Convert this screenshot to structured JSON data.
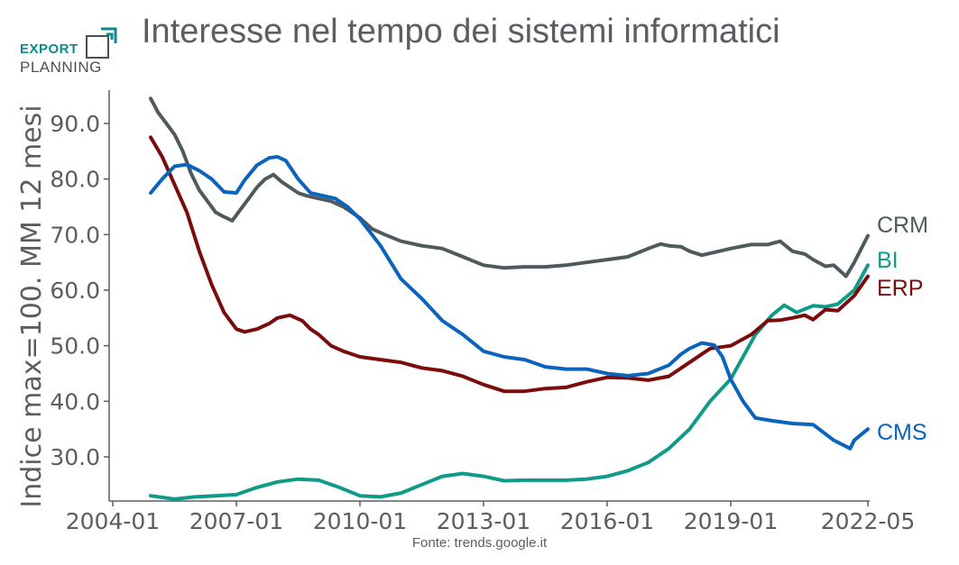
{
  "logo": {
    "line1": "EXPORT",
    "line2": "PLANNING"
  },
  "header": {
    "title": "Interesse nel tempo dei sistemi informatici"
  },
  "footer": {
    "source": "Fonte: trends.google.it"
  },
  "colors": {
    "CRM": "#4f5a5c",
    "BI": "#109a8a",
    "ERP": "#7a0c0c",
    "CMS": "#0a63bd",
    "axis": "#5a5e63"
  },
  "chart_data": {
    "type": "line",
    "title": "Interesse nel tempo dei sistemi informatici",
    "ylabel": "Indice max=100. MM 12 mesi",
    "xlabel": "",
    "xlim": [
      2004.92,
      2022.33
    ],
    "ylim": [
      22,
      96
    ],
    "x_ticks": [
      {
        "label": "2004-01",
        "value": 2004.0
      },
      {
        "label": "2007-01",
        "value": 2007.0
      },
      {
        "label": "2010-01",
        "value": 2010.0
      },
      {
        "label": "2013-01",
        "value": 2013.0
      },
      {
        "label": "2016-01",
        "value": 2016.0
      },
      {
        "label": "2019-01",
        "value": 2019.0
      },
      {
        "label": "2022-05",
        "value": 2022.33
      }
    ],
    "y_ticks": [
      {
        "label": "30.0",
        "value": 30
      },
      {
        "label": "40.0",
        "value": 40
      },
      {
        "label": "50.0",
        "value": 50
      },
      {
        "label": "60.0",
        "value": 60
      },
      {
        "label": "70.0",
        "value": 70
      },
      {
        "label": "80.0",
        "value": 80
      },
      {
        "label": "90.0",
        "value": 90
      }
    ],
    "grid": false,
    "series": [
      {
        "name": "CRM",
        "x": [
          2004.92,
          2005.1,
          2005.3,
          2005.5,
          2005.7,
          2005.9,
          2006.1,
          2006.3,
          2006.5,
          2006.7,
          2006.9,
          2007.1,
          2007.3,
          2007.5,
          2007.7,
          2007.9,
          2008.1,
          2008.3,
          2008.5,
          2008.7,
          2009.0,
          2009.3,
          2009.6,
          2010.0,
          2010.3,
          2010.6,
          2011.0,
          2011.5,
          2012.0,
          2012.5,
          2013.0,
          2013.5,
          2014.0,
          2014.5,
          2015.0,
          2015.5,
          2016.0,
          2016.5,
          2017.0,
          2017.3,
          2017.5,
          2017.8,
          2018.0,
          2018.3,
          2018.6,
          2019.0,
          2019.5,
          2019.9,
          2020.2,
          2020.5,
          2020.8,
          2021.0,
          2021.3,
          2021.5,
          2021.8,
          2022.0,
          2022.33
        ],
        "y": [
          94.5,
          92,
          90,
          88,
          85,
          81,
          78,
          76,
          74,
          73.2,
          72.5,
          74.5,
          76.5,
          78.5,
          80,
          80.8,
          79.5,
          78.5,
          77.5,
          77,
          76.5,
          76,
          75,
          73,
          71,
          70,
          68.8,
          68,
          67.5,
          66,
          64.5,
          64,
          64.2,
          64.2,
          64.5,
          65,
          65.5,
          66,
          67.5,
          68.3,
          68,
          67.8,
          67,
          66.3,
          66.8,
          67.5,
          68.2,
          68.2,
          68.8,
          67,
          66.5,
          65.5,
          64.3,
          64.5,
          62.5,
          65,
          69.8
        ]
      },
      {
        "name": "BI",
        "x": [
          2004.92,
          2005.5,
          2006.0,
          2006.5,
          2007.0,
          2007.5,
          2008.0,
          2008.5,
          2009.0,
          2009.5,
          2010.0,
          2010.5,
          2011.0,
          2011.5,
          2012.0,
          2012.5,
          2013.0,
          2013.5,
          2014.0,
          2014.5,
          2015.0,
          2015.5,
          2016.0,
          2016.5,
          2017.0,
          2017.5,
          2018.0,
          2018.5,
          2019.0,
          2019.3,
          2019.6,
          2020.0,
          2020.3,
          2020.6,
          2021.0,
          2021.3,
          2021.6,
          2022.0,
          2022.33
        ],
        "y": [
          23,
          22.4,
          22.8,
          23,
          23.2,
          24.5,
          25.5,
          26,
          25.8,
          24.5,
          23,
          22.8,
          23.5,
          25,
          26.5,
          27,
          26.5,
          25.7,
          25.8,
          25.8,
          25.8,
          26,
          26.5,
          27.5,
          29,
          31.5,
          35,
          40,
          44,
          48,
          52,
          55.5,
          57.3,
          56,
          57.2,
          57,
          57.5,
          60,
          64.5
        ]
      },
      {
        "name": "ERP",
        "x": [
          2004.92,
          2005.2,
          2005.5,
          2005.8,
          2006.1,
          2006.4,
          2006.7,
          2007.0,
          2007.2,
          2007.5,
          2007.8,
          2008.0,
          2008.3,
          2008.6,
          2008.8,
          2009.0,
          2009.3,
          2009.6,
          2010.0,
          2010.5,
          2011.0,
          2011.5,
          2012.0,
          2012.5,
          2013.0,
          2013.5,
          2014.0,
          2014.5,
          2015.0,
          2015.5,
          2016.0,
          2016.5,
          2017.0,
          2017.5,
          2018.0,
          2018.5,
          2019.0,
          2019.5,
          2019.9,
          2020.2,
          2020.5,
          2020.8,
          2021.0,
          2021.3,
          2021.6,
          2022.0,
          2022.33
        ],
        "y": [
          87.5,
          84,
          79,
          74,
          67,
          61,
          56,
          53,
          52.5,
          53,
          54,
          55,
          55.5,
          54.5,
          53,
          52,
          50,
          49,
          48,
          47.5,
          47,
          46,
          45.5,
          44.5,
          43,
          41.8,
          41.8,
          42.3,
          42.5,
          43.5,
          44.3,
          44.2,
          43.8,
          44.5,
          47,
          49.5,
          50,
          52,
          54.5,
          54.6,
          55,
          55.5,
          54.7,
          56.5,
          56.3,
          59,
          62.5
        ]
      },
      {
        "name": "CMS",
        "x": [
          2004.92,
          2005.2,
          2005.5,
          2005.8,
          2006.1,
          2006.4,
          2006.7,
          2007.0,
          2007.2,
          2007.5,
          2007.8,
          2008.0,
          2008.2,
          2008.5,
          2008.8,
          2009.1,
          2009.4,
          2009.7,
          2010.0,
          2010.5,
          2011.0,
          2011.5,
          2012.0,
          2012.5,
          2013.0,
          2013.5,
          2014.0,
          2014.5,
          2015.0,
          2015.5,
          2016.0,
          2016.5,
          2017.0,
          2017.5,
          2017.8,
          2018.0,
          2018.3,
          2018.6,
          2018.8,
          2019.0,
          2019.3,
          2019.6,
          2020.0,
          2020.5,
          2021.0,
          2021.5,
          2021.9,
          2022.0,
          2022.33
        ],
        "y": [
          77.5,
          80,
          82.3,
          82.6,
          81.5,
          80,
          77.7,
          77.5,
          79.8,
          82.5,
          83.8,
          84,
          83.3,
          80,
          77.5,
          77,
          76.5,
          75,
          72.8,
          68,
          62,
          58.5,
          54.5,
          52,
          49,
          48,
          47.5,
          46.2,
          45.8,
          45.8,
          45,
          44.6,
          45,
          46.5,
          48.5,
          49.5,
          50.5,
          50.1,
          48,
          44,
          40,
          37,
          36.5,
          36,
          35.8,
          33,
          31.5,
          33,
          35
        ]
      }
    ],
    "legend": "inline right"
  }
}
